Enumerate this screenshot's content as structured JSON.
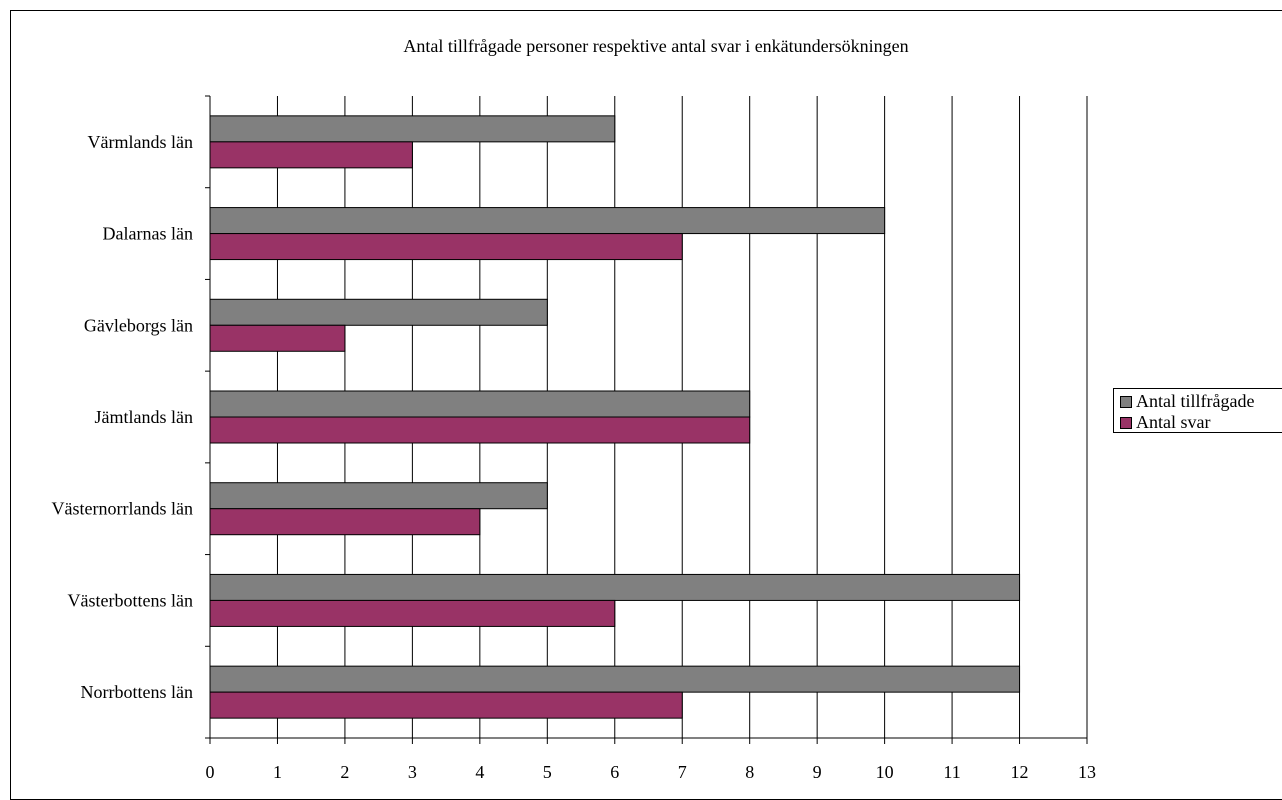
{
  "chart_data": {
    "type": "bar",
    "orientation": "horizontal",
    "title": "Antal tillfrågade personer respektive antal svar i enkätundersökningen",
    "categories": [
      "Värmlands län",
      "Dalarnas län",
      "Gävleborgs län",
      "Jämtlands län",
      "Västernorrlands län",
      "Västerbottens län",
      "Norrbottens län"
    ],
    "series": [
      {
        "name": "Antal tillfrågade",
        "color": "#808080",
        "values": [
          6,
          10,
          5,
          8,
          5,
          12,
          12
        ]
      },
      {
        "name": "Antal svar",
        "color": "#993366",
        "values": [
          3,
          7,
          2,
          8,
          4,
          6,
          7
        ]
      }
    ],
    "xlim": [
      0,
      13
    ],
    "x_ticks": [
      "0",
      "1",
      "2",
      "3",
      "4",
      "5",
      "6",
      "7",
      "8",
      "9",
      "10",
      "11",
      "12",
      "13"
    ],
    "xlabel": "",
    "ylabel": "",
    "grid": "vertical",
    "legend_position": "right"
  }
}
